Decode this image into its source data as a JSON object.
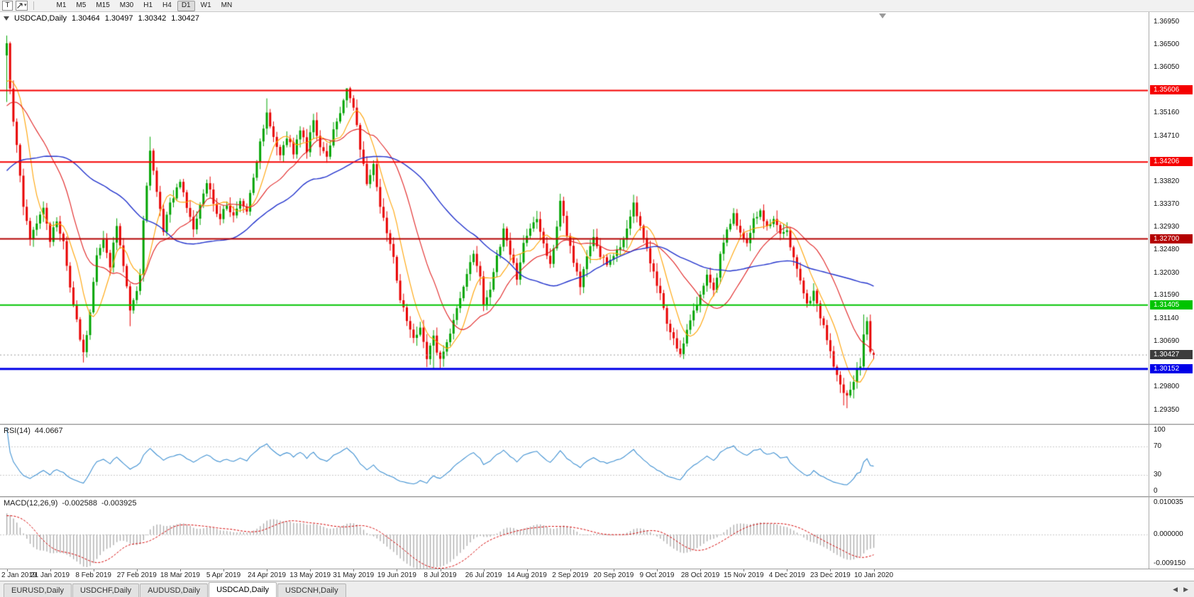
{
  "toolbar": {
    "text_tool": "T",
    "timeframes": [
      "M1",
      "M5",
      "M15",
      "M30",
      "H1",
      "H4",
      "D1",
      "W1",
      "MN"
    ],
    "active_timeframe": "D1"
  },
  "icons": {
    "dropdown_caret": "▾",
    "tab_scroll_left": "◀",
    "tab_scroll_right": "▶"
  },
  "chart": {
    "symbol": "USDCAD,Daily",
    "ohlc": {
      "open": "1.30464",
      "high": "1.30497",
      "low": "1.30342",
      "close": "1.30427"
    },
    "current_price": {
      "value": 1.30427,
      "label": "1.30427",
      "badge_color": "#3c3c3c"
    }
  },
  "rsi": {
    "name": "RSI(14)",
    "value": "44.0667"
  },
  "macd": {
    "name": "MACD(12,26,9)",
    "main_value": "-0.002588",
    "signal_value": "-0.003925"
  },
  "colors": {
    "up_candle": "#00a400",
    "down_candle": "#e80000",
    "ma_fast": "#ffa200",
    "ma_mid": "#e02020",
    "ma_slow": "#2233cc",
    "rsi_line": "#3d8fd1",
    "macd_histogram": "#a8a8a8",
    "macd_signal": "#d40000",
    "grid_dash": "#c8c8c8",
    "current_price_line": "#9a9a9a"
  },
  "tabs": {
    "items": [
      {
        "label": "EURUSD,Daily",
        "active": false
      },
      {
        "label": "USDCHF,Daily",
        "active": false
      },
      {
        "label": "AUDUSD,Daily",
        "active": false
      },
      {
        "label": "USDCAD,Daily",
        "active": true
      },
      {
        "label": "USDCNH,Daily",
        "active": false
      }
    ]
  },
  "chart_data": {
    "type": "candlestick",
    "symbol": "USDCAD",
    "timeframe": "Daily",
    "visible_bars": 261,
    "x_tick_labels": [
      "2 Jan 2019",
      "21 Jan 2019",
      "8 Feb 2019",
      "27 Feb 2019",
      "18 Mar 2019",
      "5 Apr 2019",
      "24 Apr 2019",
      "13 May 2019",
      "31 May 2019",
      "19 Jun 2019",
      "8 Jul 2019",
      "26 Jul 2019",
      "14 Aug 2019",
      "2 Sep 2019",
      "20 Sep 2019",
      "9 Oct 2019",
      "28 Oct 2019",
      "15 Nov 2019",
      "4 Dec 2019",
      "23 Dec 2019",
      "10 Jan 2020"
    ],
    "bars_per_x_tick": 13,
    "price_axis_ticks": [
      {
        "label": "1.36950",
        "value": 1.3695
      },
      {
        "label": "1.36500",
        "value": 1.365
      },
      {
        "label": "1.36050",
        "value": 1.3605
      },
      {
        "label": "1.35160",
        "value": 1.3516
      },
      {
        "label": "1.34710",
        "value": 1.3471
      },
      {
        "label": "1.33820",
        "value": 1.3382
      },
      {
        "label": "1.33370",
        "value": 1.3337
      },
      {
        "label": "1.32930",
        "value": 1.3293
      },
      {
        "label": "1.32480",
        "value": 1.3248
      },
      {
        "label": "1.32030",
        "value": 1.3203
      },
      {
        "label": "1.31590",
        "value": 1.3159
      },
      {
        "label": "1.31140",
        "value": 1.3114
      },
      {
        "label": "1.30690",
        "value": 1.3069
      },
      {
        "label": "1.29800",
        "value": 1.298
      },
      {
        "label": "1.29350",
        "value": 1.2935
      }
    ],
    "hlines": [
      {
        "price": 1.35606,
        "label": "1.35606",
        "color": "#f50000",
        "width": 2
      },
      {
        "price": 1.34206,
        "label": "1.34206",
        "color": "#f50000",
        "width": 2
      },
      {
        "price": 1.327,
        "label": "1.32700",
        "color": "#b40000",
        "width": 2
      },
      {
        "price": 1.31405,
        "label": "1.31405",
        "color": "#00c400",
        "width": 2
      },
      {
        "price": 1.30152,
        "label": "1.30152",
        "color": "#0000e8",
        "width": 3
      }
    ],
    "current_price": 1.30427,
    "last_candle": {
      "open": 1.30464,
      "high": 1.30497,
      "low": 1.30342,
      "close": 1.30427
    },
    "close_anchors": [
      [
        -60,
        1.321
      ],
      [
        -40,
        1.325
      ],
      [
        -28,
        1.338
      ],
      [
        -18,
        1.346
      ],
      [
        -10,
        1.353
      ],
      [
        -4,
        1.3545
      ],
      [
        0,
        1.365
      ],
      [
        1,
        1.356
      ],
      [
        3,
        1.345
      ],
      [
        5,
        1.333
      ],
      [
        7,
        1.327
      ],
      [
        9,
        1.33
      ],
      [
        11,
        1.333
      ],
      [
        13,
        1.327
      ],
      [
        15,
        1.3305
      ],
      [
        17,
        1.326
      ],
      [
        19,
        1.318
      ],
      [
        21,
        1.311
      ],
      [
        23,
        1.3045
      ],
      [
        25,
        1.313
      ],
      [
        27,
        1.324
      ],
      [
        29,
        1.327
      ],
      [
        31,
        1.322
      ],
      [
        33,
        1.33
      ],
      [
        35,
        1.322
      ],
      [
        37,
        1.313
      ],
      [
        39,
        1.317
      ],
      [
        40,
        1.32
      ],
      [
        41,
        1.331
      ],
      [
        43,
        1.3445
      ],
      [
        45,
        1.336
      ],
      [
        47,
        1.329
      ],
      [
        49,
        1.3335
      ],
      [
        52,
        1.338
      ],
      [
        54,
        1.333
      ],
      [
        56,
        1.329
      ],
      [
        58,
        1.334
      ],
      [
        60,
        1.3385
      ],
      [
        62,
        1.334
      ],
      [
        64,
        1.331
      ],
      [
        66,
        1.3335
      ],
      [
        68,
        1.331
      ],
      [
        70,
        1.335
      ],
      [
        72,
        1.332
      ],
      [
        74,
        1.339
      ],
      [
        76,
        1.346
      ],
      [
        78,
        1.352
      ],
      [
        80,
        1.347
      ],
      [
        82,
        1.3435
      ],
      [
        84,
        1.347
      ],
      [
        86,
        1.344
      ],
      [
        88,
        1.348
      ],
      [
        90,
        1.3445
      ],
      [
        92,
        1.35
      ],
      [
        94,
        1.3455
      ],
      [
        96,
        1.343
      ],
      [
        98,
        1.348
      ],
      [
        100,
        1.3515
      ],
      [
        102,
        1.356
      ],
      [
        104,
        1.3525
      ],
      [
        106,
        1.345
      ],
      [
        108,
        1.338
      ],
      [
        110,
        1.342
      ],
      [
        112,
        1.333
      ],
      [
        114,
        1.328
      ],
      [
        116,
        1.323
      ],
      [
        118,
        1.315
      ],
      [
        120,
        1.311
      ],
      [
        122,
        1.307
      ],
      [
        124,
        1.3095
      ],
      [
        126,
        1.304
      ],
      [
        128,
        1.3075
      ],
      [
        130,
        1.303
      ],
      [
        132,
        1.3065
      ],
      [
        134,
        1.311
      ],
      [
        136,
        1.3155
      ],
      [
        138,
        1.3205
      ],
      [
        140,
        1.3245
      ],
      [
        142,
        1.319
      ],
      [
        143,
        1.3135
      ],
      [
        145,
        1.3175
      ],
      [
        147,
        1.3235
      ],
      [
        149,
        1.3285
      ],
      [
        151,
        1.324
      ],
      [
        153,
        1.3195
      ],
      [
        155,
        1.326
      ],
      [
        157,
        1.3285
      ],
      [
        159,
        1.331
      ],
      [
        161,
        1.326
      ],
      [
        163,
        1.322
      ],
      [
        165,
        1.329
      ],
      [
        166,
        1.3345
      ],
      [
        168,
        1.328
      ],
      [
        170,
        1.322
      ],
      [
        172,
        1.318
      ],
      [
        174,
        1.3235
      ],
      [
        176,
        1.328
      ],
      [
        178,
        1.324
      ],
      [
        180,
        1.322
      ],
      [
        182,
        1.3235
      ],
      [
        184,
        1.3255
      ],
      [
        186,
        1.3295
      ],
      [
        188,
        1.334
      ],
      [
        190,
        1.3295
      ],
      [
        192,
        1.325
      ],
      [
        194,
        1.3205
      ],
      [
        196,
        1.316
      ],
      [
        198,
        1.311
      ],
      [
        200,
        1.307
      ],
      [
        202,
        1.3045
      ],
      [
        204,
        1.3095
      ],
      [
        206,
        1.3135
      ],
      [
        208,
        1.3155
      ],
      [
        210,
        1.32
      ],
      [
        212,
        1.3165
      ],
      [
        214,
        1.3235
      ],
      [
        216,
        1.329
      ],
      [
        218,
        1.3315
      ],
      [
        220,
        1.328
      ],
      [
        222,
        1.326
      ],
      [
        224,
        1.3305
      ],
      [
        226,
        1.3325
      ],
      [
        228,
        1.3295
      ],
      [
        230,
        1.3315
      ],
      [
        232,
        1.328
      ],
      [
        234,
        1.3285
      ],
      [
        236,
        1.3235
      ],
      [
        238,
        1.3185
      ],
      [
        240,
        1.314
      ],
      [
        242,
        1.317
      ],
      [
        244,
        1.312
      ],
      [
        246,
        1.3075
      ],
      [
        248,
        1.302
      ],
      [
        250,
        1.2985
      ],
      [
        252,
        1.296
      ],
      [
        254,
        1.299
      ],
      [
        256,
        1.3025
      ],
      [
        257,
        1.3085
      ],
      [
        258,
        1.311
      ],
      [
        259,
        1.3055
      ],
      [
        260,
        1.30427
      ]
    ],
    "wick_overrides": {
      "0": {
        "h": 1.3668,
        "l": 1.3538
      },
      "23": {
        "l": 1.3028
      },
      "37": {
        "l": 1.3099
      },
      "43": {
        "h": 1.347
      },
      "78": {
        "h": 1.3545
      },
      "102": {
        "h": 1.3564
      },
      "126": {
        "l": 1.3019
      },
      "128": {
        "l": 1.30155
      },
      "130": {
        "l": 1.3017
      },
      "202": {
        "l": 1.3038
      },
      "251": {
        "l": 1.2944
      },
      "252": {
        "l": 1.29385
      },
      "257": {
        "h": 1.3122
      }
    },
    "moving_averages": [
      {
        "period": 8,
        "color": "#ffa200",
        "width": 1.1
      },
      {
        "period": 20,
        "color": "#e02020",
        "width": 1.1
      },
      {
        "period": 50,
        "color": "#2233cc",
        "width": 1.4
      }
    ],
    "indicators": {
      "rsi": {
        "period": 14,
        "value": 44.0667,
        "levels": [
          70,
          30
        ],
        "axis": [
          {
            "label": "100",
            "value": 100
          },
          {
            "label": "70",
            "value": 70
          },
          {
            "label": "30",
            "value": 30
          },
          {
            "label": "0",
            "value": 0
          }
        ]
      },
      "macd": {
        "fast": 12,
        "slow": 26,
        "signal": 9,
        "value": -0.002588,
        "signal_value": -0.003925,
        "axis": [
          {
            "label": "0.010035",
            "value": 0.010035
          },
          {
            "label": "0.000000",
            "value": 0
          },
          {
            "label": "-0.009150",
            "value": -0.00915
          }
        ]
      }
    }
  }
}
